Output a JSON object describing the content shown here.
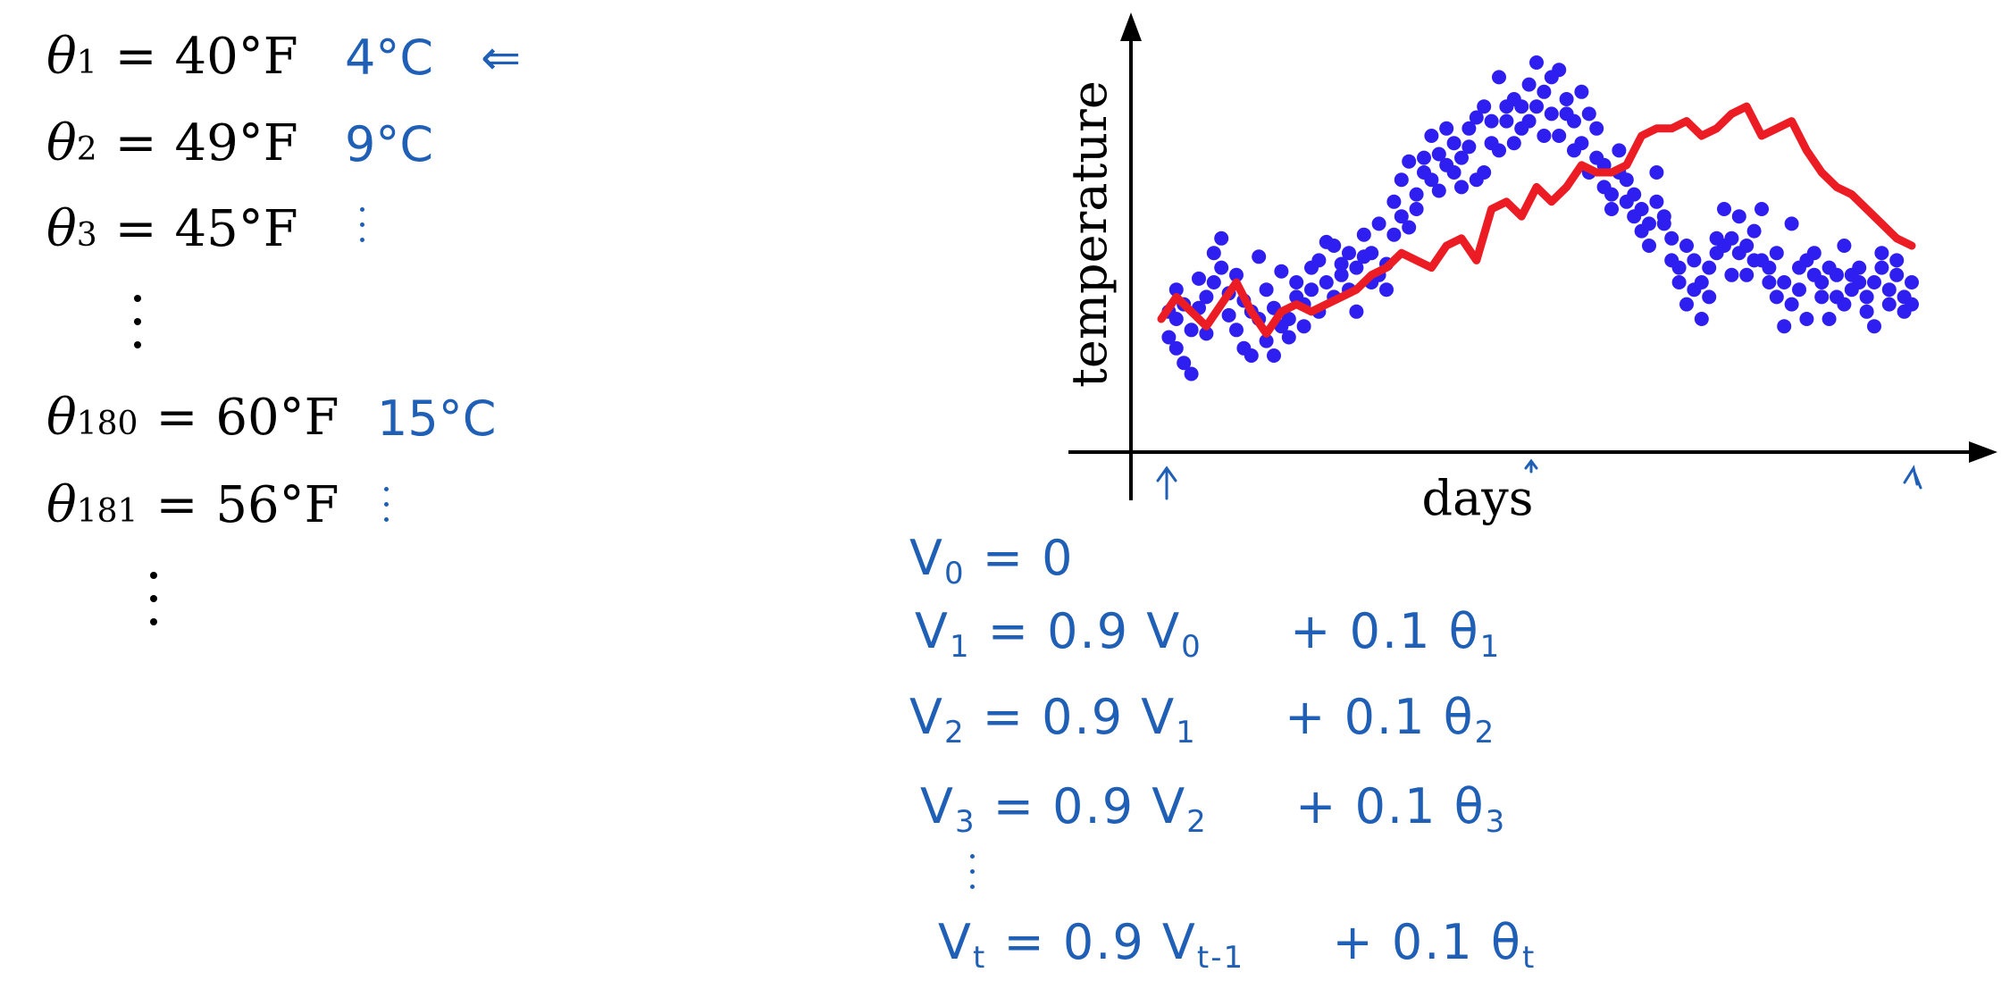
{
  "left_equations": [
    {
      "symbol": "θ",
      "subscript": "1",
      "value": "40°F",
      "note": "4°C",
      "arrow": "⇐"
    },
    {
      "symbol": "θ",
      "subscript": "2",
      "value": "49°F",
      "note": "9°C"
    },
    {
      "symbol": "θ",
      "subscript": "3",
      "value": "45°F",
      "note": ""
    },
    {
      "symbol": "θ",
      "subscript": "180",
      "value": "60°F",
      "note": "15°C"
    },
    {
      "symbol": "θ",
      "subscript": "181",
      "value": "56°F",
      "note": ""
    }
  ],
  "equals_sign": "=",
  "recurrence": [
    {
      "lhs": "V",
      "lhs_sub": "0",
      "rhs": "= 0",
      "term2": ""
    },
    {
      "lhs": "V",
      "lhs_sub": "1",
      "rhs": "= 0.9 V",
      "rhs_sub": "0",
      "term2": "+ 0.1 θ",
      "term2_sub": "1"
    },
    {
      "lhs": "V",
      "lhs_sub": "2",
      "rhs": "= 0.9 V",
      "rhs_sub": "1",
      "term2": "+ 0.1 θ",
      "term2_sub": "2"
    },
    {
      "lhs": "V",
      "lhs_sub": "3",
      "rhs": "= 0.9 V",
      "rhs_sub": "2",
      "term2": "+ 0.1 θ",
      "term2_sub": "3"
    },
    {
      "lhs": "V",
      "lhs_sub": "t",
      "rhs": "= 0.9 V",
      "rhs_sub": "t-1",
      "term2": "+ 0.1 θ",
      "term2_sub": "t"
    }
  ],
  "colors": {
    "ink": "#000000",
    "handwriting": "#1f5fb5",
    "points": "#2e1ff0",
    "average": "#ec1c24"
  },
  "chart_data": {
    "type": "scatter",
    "xlabel": "days",
    "ylabel": "temperature",
    "title": "",
    "xlim": [
      0,
      100
    ],
    "ylim": [
      0,
      100
    ],
    "grid": false,
    "series": [
      {
        "name": "",
        "type": "scatter",
        "x": [
          1,
          1,
          2,
          2,
          2,
          3,
          3,
          4,
          4,
          5,
          5,
          6,
          6,
          7,
          7,
          8,
          8,
          9,
          9,
          10,
          10,
          11,
          11,
          12,
          12,
          13,
          13,
          14,
          14,
          15,
          15,
          16,
          16,
          17,
          17,
          18,
          18,
          19,
          19,
          20,
          20,
          21,
          21,
          22,
          22,
          23,
          23,
          24,
          24,
          25,
          25,
          26,
          26,
          27,
          27,
          28,
          28,
          29,
          29,
          30,
          30,
          31,
          31,
          32,
          32,
          33,
          33,
          34,
          34,
          35,
          35,
          36,
          36,
          37,
          37,
          38,
          38,
          39,
          39,
          40,
          40,
          41,
          41,
          42,
          42,
          43,
          43,
          44,
          44,
          45,
          45,
          46,
          46,
          47,
          47,
          48,
          48,
          49,
          49,
          50,
          50,
          51,
          51,
          52,
          52,
          53,
          53,
          54,
          54,
          55,
          55,
          56,
          56,
          57,
          57,
          58,
          58,
          59,
          59,
          60,
          60,
          61,
          61,
          62,
          62,
          63,
          63,
          64,
          64,
          65,
          65,
          66,
          66,
          67,
          67,
          68,
          68,
          69,
          69,
          70,
          70,
          71,
          71,
          72,
          72,
          73,
          73,
          74,
          74,
          75,
          75,
          76,
          76,
          77,
          77,
          78,
          78,
          79,
          79,
          80,
          80,
          81,
          81,
          82,
          82,
          83,
          83,
          84,
          84,
          85,
          85,
          86,
          86,
          87,
          87,
          88,
          88,
          89,
          89,
          90,
          90,
          91,
          91,
          92,
          92,
          93,
          93,
          94,
          94,
          95,
          95,
          96,
          96,
          97,
          97,
          98,
          98,
          99,
          99,
          100,
          100
        ],
        "y": [
          32,
          25,
          38,
          22,
          30,
          18,
          34,
          27,
          15,
          33,
          41,
          36,
          26,
          48,
          40,
          52,
          44,
          37,
          31,
          27,
          42,
          35,
          22,
          20,
          32,
          47,
          30,
          24,
          38,
          20,
          33,
          28,
          43,
          30,
          25,
          36,
          40,
          34,
          28,
          44,
          38,
          32,
          46,
          40,
          51,
          36,
          50,
          45,
          42,
          38,
          48,
          44,
          32,
          53,
          47,
          40,
          48,
          56,
          42,
          45,
          38,
          53,
          62,
          58,
          68,
          55,
          73,
          64,
          60,
          70,
          74,
          80,
          68,
          75,
          65,
          82,
          72,
          78,
          70,
          74,
          66,
          82,
          77,
          68,
          85,
          88,
          70,
          78,
          84,
          76,
          96,
          88,
          84,
          78,
          90,
          82,
          88,
          94,
          84,
          100,
          88,
          80,
          92,
          86,
          96,
          98,
          80,
          90,
          86,
          76,
          84,
          78,
          92,
          86,
          70,
          82,
          74,
          66,
          72,
          64,
          60,
          70,
          76,
          62,
          68,
          58,
          64,
          54,
          60,
          56,
          50,
          70,
          62,
          58,
          56,
          46,
          52,
          40,
          44,
          34,
          50,
          38,
          46,
          30,
          40,
          36,
          44,
          48,
          52,
          50,
          60,
          42,
          52,
          58,
          48,
          50,
          42,
          54,
          46,
          60,
          46,
          44,
          40,
          36,
          48,
          28,
          40,
          56,
          34,
          44,
          38,
          30,
          46,
          48,
          42,
          36,
          40,
          30,
          44,
          36,
          42,
          34,
          50,
          38,
          42,
          40,
          44,
          32,
          36,
          40,
          28,
          44,
          48,
          34,
          38,
          42,
          46,
          32,
          36,
          40,
          34
        ]
      },
      {
        "name": "",
        "type": "line",
        "x": [
          0,
          2,
          4,
          6,
          8,
          10,
          12,
          14,
          16,
          18,
          20,
          22,
          24,
          26,
          28,
          30,
          32,
          34,
          36,
          38,
          40,
          42,
          44,
          46,
          48,
          50,
          52,
          54,
          56,
          58,
          60,
          62,
          64,
          66,
          68,
          70,
          72,
          74,
          76,
          78,
          80,
          82,
          84,
          86,
          88,
          90,
          92,
          94,
          96,
          98,
          100
        ],
        "y": [
          30,
          36,
          32,
          28,
          34,
          40,
          32,
          26,
          32,
          34,
          32,
          34,
          36,
          38,
          42,
          44,
          48,
          46,
          44,
          50,
          52,
          46,
          60,
          62,
          58,
          66,
          62,
          66,
          72,
          70,
          70,
          72,
          80,
          82,
          82,
          84,
          80,
          82,
          86,
          88,
          80,
          82,
          84,
          76,
          70,
          66,
          64,
          60,
          56,
          52,
          50
        ]
      }
    ]
  }
}
